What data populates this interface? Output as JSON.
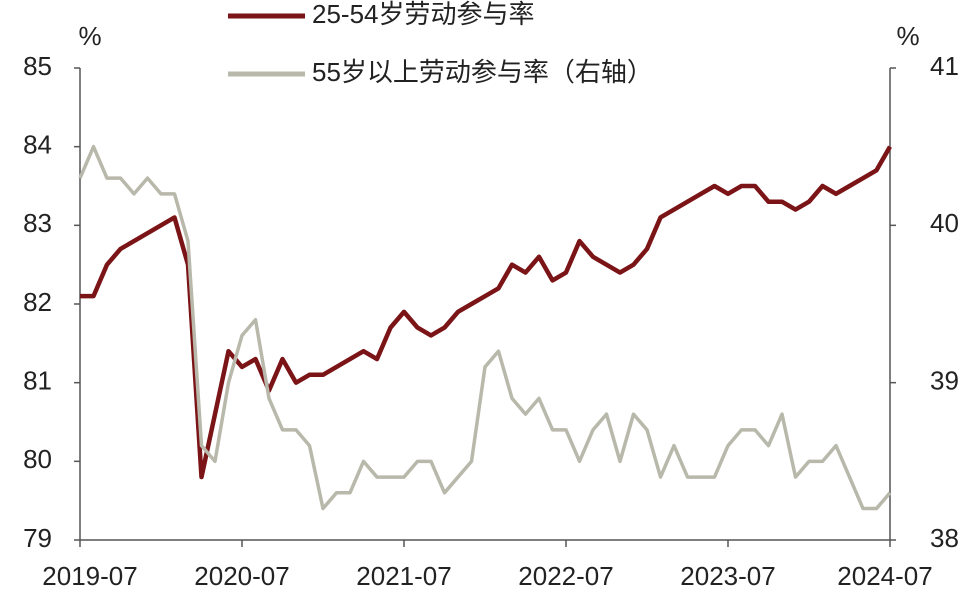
{
  "chart_data": {
    "type": "line",
    "y_unit": "%",
    "y2_unit": "%",
    "categories": [
      "2019-07",
      null,
      null,
      null,
      null,
      null,
      null,
      null,
      null,
      null,
      null,
      null,
      "2020-07",
      null,
      null,
      null,
      null,
      null,
      null,
      null,
      null,
      null,
      null,
      null,
      "2021-07",
      null,
      null,
      null,
      null,
      null,
      null,
      null,
      null,
      null,
      null,
      null,
      "2022-07",
      null,
      null,
      null,
      null,
      null,
      null,
      null,
      null,
      null,
      null,
      null,
      "2023-07",
      null,
      null,
      null,
      null,
      null,
      null,
      null,
      null,
      null,
      null,
      null,
      "2024-07"
    ],
    "ylim": [
      79,
      85
    ],
    "yticks": [
      79,
      80,
      81,
      82,
      83,
      84,
      85
    ],
    "y2lim": [
      38,
      41
    ],
    "y2ticks": [
      38,
      39,
      40,
      41
    ],
    "legend": "top",
    "series": [
      {
        "name": "25-54岁劳动参与率",
        "color": "#7b1416",
        "values": [
          82.1,
          82.1,
          82.5,
          82.7,
          82.8,
          82.9,
          83.0,
          83.1,
          82.5,
          79.8,
          80.6,
          81.4,
          81.2,
          81.3,
          80.9,
          81.3,
          81.0,
          81.1,
          81.1,
          81.2,
          81.3,
          81.4,
          81.3,
          81.7,
          81.9,
          81.7,
          81.6,
          81.7,
          81.9,
          82.0,
          82.1,
          82.2,
          82.5,
          82.4,
          82.6,
          82.3,
          82.4,
          82.8,
          82.6,
          82.5,
          82.4,
          82.5,
          82.7,
          83.1,
          83.2,
          83.3,
          83.4,
          83.5,
          83.4,
          83.5,
          83.5,
          83.3,
          83.3,
          83.2,
          83.3,
          83.5,
          83.4,
          83.5,
          83.6,
          83.7,
          84.0
        ]
      },
      {
        "name": "55岁以上劳动参与率（右轴）",
        "color": "#b8b8ab",
        "axis": "y2",
        "values": [
          40.3,
          40.5,
          40.3,
          40.3,
          40.2,
          40.3,
          40.2,
          40.2,
          39.9,
          38.6,
          38.5,
          39.0,
          39.3,
          39.4,
          38.9,
          38.7,
          38.7,
          38.6,
          38.2,
          38.3,
          38.3,
          38.5,
          38.4,
          38.4,
          38.4,
          38.5,
          38.5,
          38.3,
          38.4,
          38.5,
          39.1,
          39.2,
          38.9,
          38.8,
          38.9,
          38.7,
          38.7,
          38.5,
          38.7,
          38.8,
          38.5,
          38.8,
          38.7,
          38.4,
          38.6,
          38.4,
          38.4,
          38.4,
          38.6,
          38.7,
          38.7,
          38.6,
          38.8,
          38.4,
          38.5,
          38.5,
          38.6,
          38.4,
          38.2,
          38.2,
          38.3
        ]
      }
    ]
  }
}
